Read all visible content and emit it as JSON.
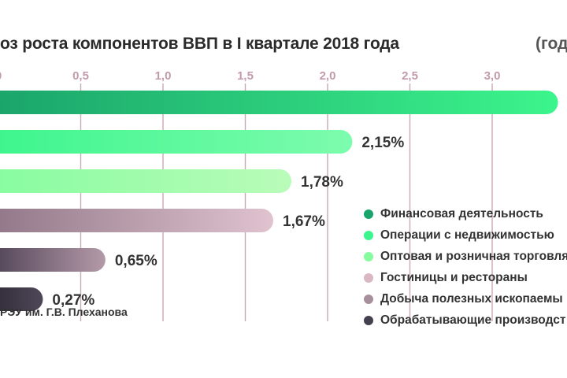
{
  "title": "оз роста компонентов ВВП в I квартале 2018 года",
  "title_unit": "(год",
  "source": "РЭУ им. Г.В. Плеханова",
  "chart_data": {
    "type": "bar",
    "orientation": "horizontal",
    "title": "оз роста компонентов ВВП в I квартале 2018 года",
    "xlim": [
      0,
      3.35
    ],
    "x_ticks": [
      0,
      0.5,
      1.0,
      1.5,
      2.0,
      2.5,
      3.0
    ],
    "x_tick_labels": [
      "0",
      "0,5",
      "1,0",
      "1,5",
      "2,0",
      "2,5",
      "3,0"
    ],
    "categories": [
      "Финансовая деятельность",
      "Операции с недвижимостью",
      "Оптовая и розничная торговля",
      "Гостиницы и рестораны",
      "Добыча полезных ископаемы",
      "Обрабатывающие производст"
    ],
    "values": [
      3.4,
      2.15,
      1.78,
      1.67,
      0.65,
      0.27
    ],
    "value_labels": [
      "",
      "2,15%",
      "1,78%",
      "1,67%",
      "0,65%",
      "0,27%"
    ],
    "colors": [
      "#1aa36a",
      "#3cf58c",
      "#86fc9f",
      "#d9b8c4",
      "#a88f9d",
      "#45404f"
    ],
    "grid": true,
    "legend_placement": "bottom-right"
  }
}
